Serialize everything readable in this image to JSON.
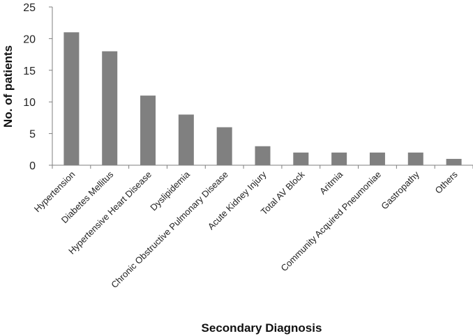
{
  "chart_data": {
    "type": "bar",
    "title": "",
    "xlabel": "Secondary Diagnosis",
    "ylabel": "No. of patients",
    "ylim": [
      0,
      25
    ],
    "yticks": [
      0,
      5,
      10,
      15,
      20,
      25
    ],
    "grid": false,
    "bar_color": "#808080",
    "categories": [
      "Hypertension",
      "Diabetes Mellitus",
      "Hypertensive Heart Disease",
      "Dyslipidemia",
      "Chronic Obstructive Pulmonary Disease",
      "Acute Kidney Injury",
      "Total AV Block",
      "Aritmia",
      "Community Acquired Pneumoniae",
      "Gastropathy",
      "Others"
    ],
    "values": [
      21,
      18,
      11,
      8,
      6,
      3,
      2,
      2,
      2,
      2,
      1
    ]
  }
}
